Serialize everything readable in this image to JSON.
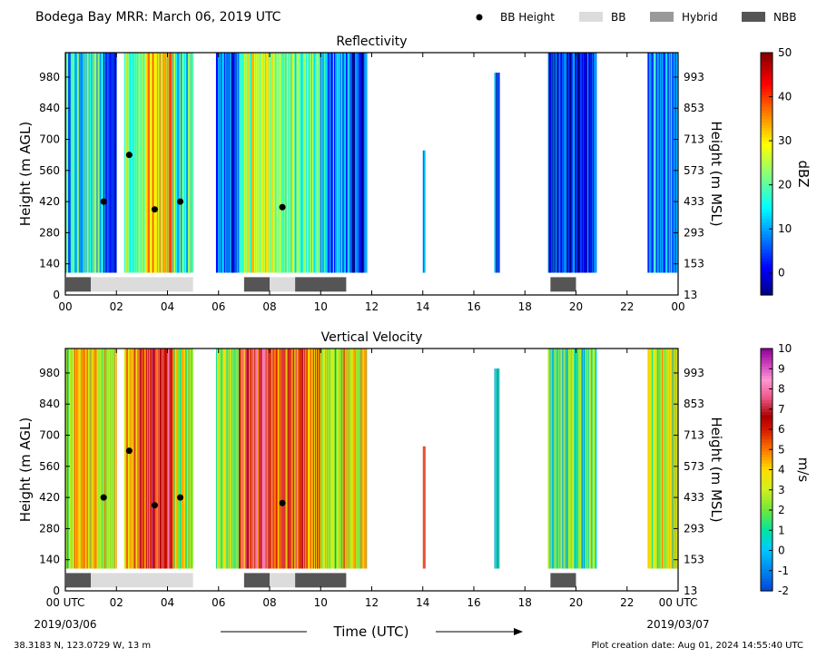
{
  "header": {
    "title": "Bodega Bay MRR:  March 06, 2019 UTC",
    "legend": [
      {
        "label": "BB Height",
        "kind": "dot",
        "color": "#000000"
      },
      {
        "label": "BB",
        "kind": "box",
        "color": "#dcdcdc"
      },
      {
        "label": "Hybrid",
        "kind": "box",
        "color": "#999999"
      },
      {
        "label": "NBB",
        "kind": "box",
        "color": "#555555"
      }
    ]
  },
  "footer": {
    "location": "38.3183 N, 123.0729 W, 13 m",
    "creation": "Plot creation date: Aug 01, 2024 14:55:40 UTC",
    "xlabel": "Time (UTC)",
    "start_date": "2019/03/06",
    "end_date": "2019/03/07"
  },
  "chart_data": [
    {
      "type": "heatmap",
      "title": "Reflectivity",
      "ylabel_left": "Height (m AGL)",
      "ylabel_right": "Height (m MSL)",
      "colorbar_label": "dBZ",
      "colorbar_ticks": [
        "50",
        "40",
        "30",
        "20",
        "10",
        "0"
      ],
      "colorbar_range": [
        -5,
        50
      ],
      "colormap": "jet",
      "x_ticks": [
        "00",
        "02",
        "04",
        "06",
        "08",
        "10",
        "12",
        "14",
        "16",
        "18",
        "20",
        "22",
        "00"
      ],
      "xlim": [
        0,
        24
      ],
      "y_ticks_left": [
        "980",
        "840",
        "700",
        "560",
        "420",
        "280",
        "140",
        "0"
      ],
      "y_ticks_right": [
        "993",
        "853",
        "713",
        "573",
        "433",
        "293",
        "153",
        "13"
      ],
      "ylim": [
        0,
        1090
      ],
      "data_bottom_m": 100,
      "bb_height_points": [
        [
          1.5,
          420
        ],
        [
          2.5,
          630
        ],
        [
          3.5,
          385
        ],
        [
          4.5,
          420
        ],
        [
          8.5,
          395
        ]
      ],
      "bb_type_segments": [
        {
          "start": 0.0,
          "end": 1.0,
          "type": "NBB"
        },
        {
          "start": 1.0,
          "end": 5.0,
          "type": "BB"
        },
        {
          "start": 7.0,
          "end": 8.0,
          "type": "NBB"
        },
        {
          "start": 8.0,
          "end": 9.0,
          "type": "BB"
        },
        {
          "start": 9.0,
          "end": 11.0,
          "type": "NBB"
        },
        {
          "start": 19.0,
          "end": 20.0,
          "type": "NBB"
        }
      ],
      "precip_periods": [
        {
          "start": 0.0,
          "end": 1.5,
          "mean": 15,
          "top": 1090
        },
        {
          "start": 1.5,
          "end": 2.0,
          "mean": 3,
          "top": 1090
        },
        {
          "start": 2.3,
          "end": 3.2,
          "mean": 22,
          "top": 1090
        },
        {
          "start": 3.2,
          "end": 4.2,
          "mean": 33,
          "top": 1090
        },
        {
          "start": 4.2,
          "end": 5.0,
          "mean": 17,
          "top": 1090
        },
        {
          "start": 5.9,
          "end": 6.8,
          "mean": 5,
          "top": 1090
        },
        {
          "start": 6.8,
          "end": 8.2,
          "mean": 24,
          "top": 1090
        },
        {
          "start": 8.2,
          "end": 10.0,
          "mean": 21,
          "top": 1090
        },
        {
          "start": 10.0,
          "end": 11.2,
          "mean": 11,
          "top": 1090
        },
        {
          "start": 11.2,
          "end": 11.8,
          "mean": 4,
          "top": 1090
        },
        {
          "start": 14.0,
          "end": 14.1,
          "mean": 10,
          "top": 650
        },
        {
          "start": 16.8,
          "end": 17.0,
          "mean": 2,
          "top": 1000
        },
        {
          "start": 18.9,
          "end": 20.8,
          "mean": 2,
          "top": 1090
        },
        {
          "start": 22.8,
          "end": 24.0,
          "mean": 10,
          "top": 1090
        }
      ]
    },
    {
      "type": "heatmap",
      "title": "Vertical Velocity",
      "ylabel_left": "Height (m AGL)",
      "ylabel_right": "Height (m MSL)",
      "colorbar_label": "m/s",
      "colorbar_ticks": [
        "10",
        "9",
        "8",
        "7",
        "6",
        "5",
        "4",
        "3",
        "2",
        "1",
        "0",
        "-1",
        "-2"
      ],
      "colorbar_range": [
        -2,
        10
      ],
      "colormap": "wind",
      "x_ticks": [
        "00 UTC",
        "02",
        "04",
        "06",
        "08",
        "10",
        "12",
        "14",
        "16",
        "18",
        "20",
        "22",
        "00 UTC"
      ],
      "xlim": [
        0,
        24
      ],
      "y_ticks_left": [
        "980",
        "840",
        "700",
        "560",
        "420",
        "280",
        "140",
        "0"
      ],
      "y_ticks_right": [
        "993",
        "853",
        "713",
        "573",
        "433",
        "293",
        "153",
        "13"
      ],
      "ylim": [
        0,
        1090
      ],
      "data_bottom_m": 100,
      "bb_height_points": [
        [
          1.5,
          420
        ],
        [
          2.5,
          630
        ],
        [
          3.5,
          385
        ],
        [
          4.5,
          420
        ],
        [
          8.5,
          395
        ]
      ],
      "bb_type_segments": [
        {
          "start": 0.0,
          "end": 1.0,
          "type": "NBB"
        },
        {
          "start": 1.0,
          "end": 5.0,
          "type": "BB"
        },
        {
          "start": 7.0,
          "end": 8.0,
          "type": "NBB"
        },
        {
          "start": 8.0,
          "end": 9.0,
          "type": "BB"
        },
        {
          "start": 9.0,
          "end": 11.0,
          "type": "NBB"
        },
        {
          "start": 19.0,
          "end": 20.0,
          "type": "NBB"
        }
      ],
      "precip_periods": [
        {
          "start": 0.0,
          "end": 2.0,
          "mean": 3.5,
          "top": 1090
        },
        {
          "start": 2.3,
          "end": 3.2,
          "mean": 5.2,
          "top": 1090
        },
        {
          "start": 3.2,
          "end": 4.2,
          "mean": 7.0,
          "top": 1090
        },
        {
          "start": 4.2,
          "end": 5.0,
          "mean": 3.0,
          "top": 1090
        },
        {
          "start": 5.9,
          "end": 6.8,
          "mean": 2.0,
          "top": 1090
        },
        {
          "start": 6.8,
          "end": 8.2,
          "mean": 6.2,
          "top": 1090
        },
        {
          "start": 8.2,
          "end": 10.0,
          "mean": 5.3,
          "top": 1090
        },
        {
          "start": 10.0,
          "end": 11.8,
          "mean": 3.5,
          "top": 1090
        },
        {
          "start": 14.0,
          "end": 14.1,
          "mean": 6.0,
          "top": 650
        },
        {
          "start": 16.8,
          "end": 17.0,
          "mean": 1.0,
          "top": 1000
        },
        {
          "start": 18.9,
          "end": 20.8,
          "mean": 1.5,
          "top": 1090
        },
        {
          "start": 22.8,
          "end": 24.0,
          "mean": 3.0,
          "top": 1090
        }
      ]
    }
  ]
}
